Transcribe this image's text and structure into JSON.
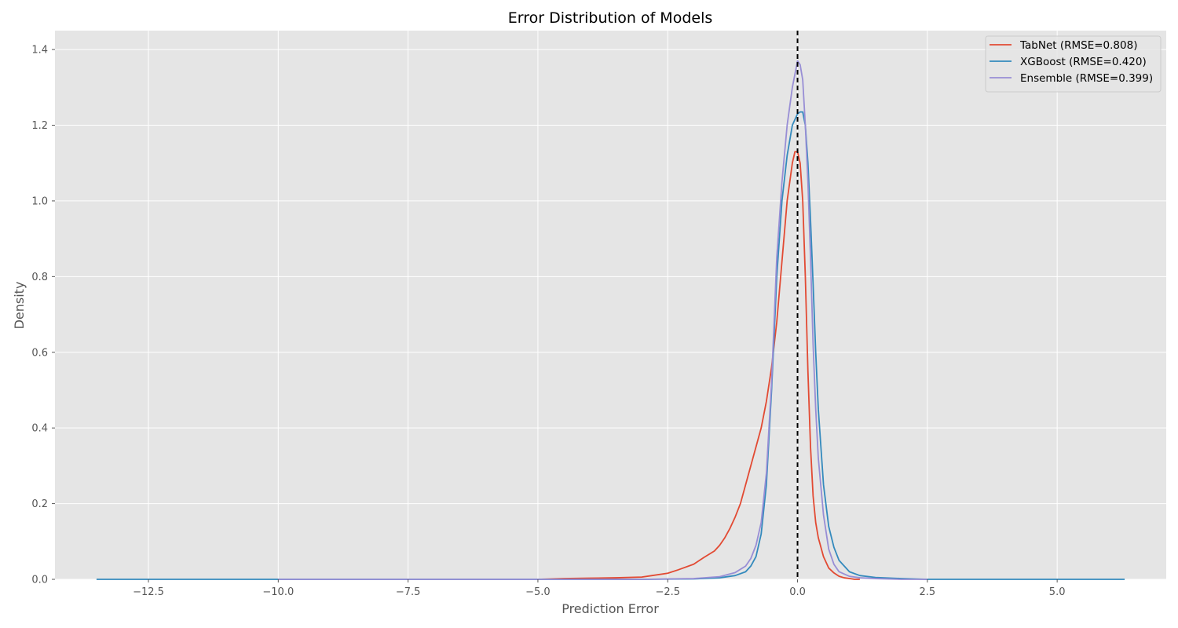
{
  "chart_data": {
    "type": "line",
    "title": "Error Distribution of Models",
    "xlabel": "Prediction Error",
    "ylabel": "Density",
    "xlim": [
      -14.3,
      7.1
    ],
    "ylim": [
      0,
      1.45
    ],
    "x_ticks": [
      -12.5,
      -10.0,
      -7.5,
      -5.0,
      -2.5,
      0.0,
      2.5,
      5.0
    ],
    "x_tick_labels": [
      "−12.5",
      "−10.0",
      "−7.5",
      "−5.0",
      "−2.5",
      "0.0",
      "2.5",
      "5.0"
    ],
    "y_ticks": [
      0.0,
      0.2,
      0.4,
      0.6,
      0.8,
      1.0,
      1.2,
      1.4
    ],
    "y_tick_labels": [
      "0.0",
      "0.2",
      "0.4",
      "0.6",
      "0.8",
      "1.0",
      "1.2",
      "1.4"
    ],
    "grid": true,
    "legend_position": "top-right",
    "reference_line": {
      "x": 0.0,
      "style": "dashed",
      "color": "#000000"
    },
    "series": [
      {
        "name": "TabNet (RMSE=0.808)",
        "color": "#E24A33",
        "x": [
          -5.0,
          -4.5,
          -4.0,
          -3.5,
          -3.0,
          -2.8,
          -2.5,
          -2.3,
          -2.0,
          -1.8,
          -1.6,
          -1.5,
          -1.4,
          -1.3,
          -1.2,
          -1.1,
          -1.0,
          -0.9,
          -0.8,
          -0.7,
          -0.6,
          -0.5,
          -0.4,
          -0.3,
          -0.2,
          -0.1,
          -0.05,
          0.0,
          0.05,
          0.1,
          0.15,
          0.2,
          0.25,
          0.3,
          0.35,
          0.4,
          0.5,
          0.6,
          0.7,
          0.8,
          0.9,
          1.0,
          1.1,
          1.2
        ],
        "y": [
          0.0,
          0.002,
          0.003,
          0.004,
          0.006,
          0.01,
          0.016,
          0.025,
          0.04,
          0.058,
          0.075,
          0.09,
          0.11,
          0.135,
          0.165,
          0.2,
          0.25,
          0.3,
          0.35,
          0.4,
          0.47,
          0.56,
          0.68,
          0.84,
          1.0,
          1.1,
          1.13,
          1.13,
          1.1,
          1.0,
          0.8,
          0.55,
          0.35,
          0.22,
          0.15,
          0.11,
          0.06,
          0.03,
          0.017,
          0.008,
          0.004,
          0.002,
          0.0,
          0.0
        ]
      },
      {
        "name": "XGBoost (RMSE=0.420)",
        "color": "#348ABD",
        "x": [
          -13.5,
          -12.5,
          -10.0,
          -7.5,
          -5.0,
          -3.0,
          -2.0,
          -1.5,
          -1.2,
          -1.0,
          -0.9,
          -0.8,
          -0.7,
          -0.6,
          -0.5,
          -0.4,
          -0.3,
          -0.2,
          -0.1,
          0.0,
          0.05,
          0.1,
          0.15,
          0.2,
          0.25,
          0.3,
          0.35,
          0.4,
          0.45,
          0.5,
          0.6,
          0.7,
          0.8,
          1.0,
          1.2,
          1.5,
          2.0,
          2.5,
          4.0,
          5.0,
          6.3
        ],
        "y": [
          0.0,
          0.0,
          0.0,
          0.0,
          0.0,
          0.0,
          0.001,
          0.004,
          0.01,
          0.02,
          0.035,
          0.06,
          0.12,
          0.25,
          0.5,
          0.8,
          1.0,
          1.12,
          1.2,
          1.23,
          1.235,
          1.235,
          1.2,
          1.1,
          0.95,
          0.78,
          0.6,
          0.45,
          0.35,
          0.25,
          0.14,
          0.085,
          0.05,
          0.02,
          0.01,
          0.005,
          0.002,
          0.0,
          0.0,
          0.0,
          0.0
        ]
      },
      {
        "name": "Ensemble (RMSE=0.399)",
        "color": "#988ED5",
        "x": [
          -10.0,
          -7.5,
          -5.0,
          -3.0,
          -2.0,
          -1.5,
          -1.2,
          -1.0,
          -0.9,
          -0.8,
          -0.7,
          -0.6,
          -0.5,
          -0.4,
          -0.3,
          -0.2,
          -0.1,
          0.0,
          0.05,
          0.1,
          0.15,
          0.2,
          0.25,
          0.3,
          0.35,
          0.4,
          0.5,
          0.6,
          0.7,
          0.8,
          1.0,
          1.2,
          1.5,
          2.0,
          2.5
        ],
        "y": [
          0.0,
          0.0,
          0.0,
          0.0,
          0.002,
          0.007,
          0.018,
          0.035,
          0.055,
          0.09,
          0.15,
          0.28,
          0.52,
          0.85,
          1.05,
          1.2,
          1.3,
          1.37,
          1.36,
          1.32,
          1.2,
          1.05,
          0.85,
          0.62,
          0.45,
          0.32,
          0.17,
          0.08,
          0.04,
          0.02,
          0.008,
          0.004,
          0.002,
          0.0,
          0.0
        ]
      }
    ]
  }
}
